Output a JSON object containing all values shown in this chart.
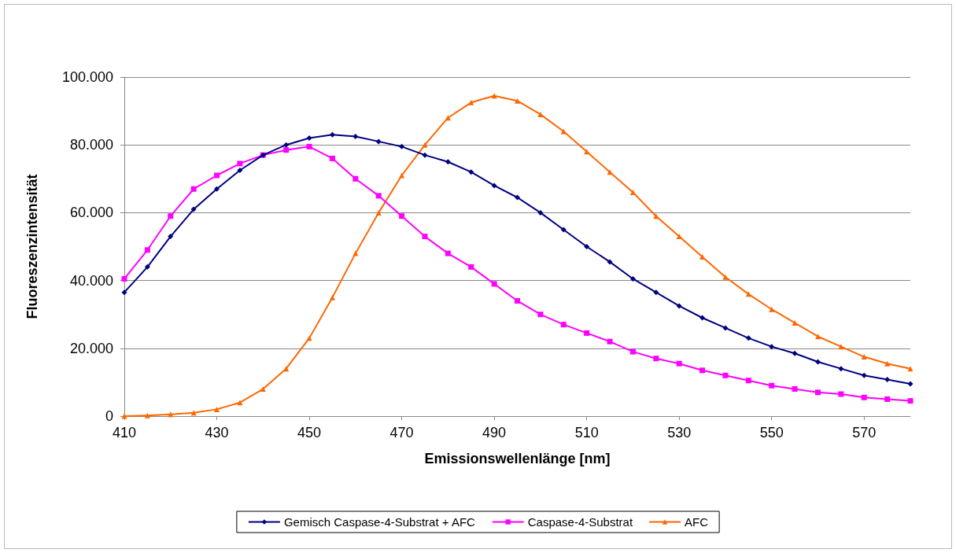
{
  "chart_data": {
    "type": "line",
    "xlabel": "Emissionswellenlänge [nm]",
    "ylabel": "Fluoreszenzintensität",
    "x": [
      410,
      415,
      420,
      425,
      430,
      435,
      440,
      445,
      450,
      455,
      460,
      465,
      470,
      475,
      480,
      485,
      490,
      495,
      500,
      505,
      510,
      515,
      520,
      525,
      530,
      535,
      540,
      545,
      550,
      555,
      560,
      565,
      570,
      575,
      580
    ],
    "xlim": [
      410,
      580
    ],
    "xticks": [
      410,
      430,
      450,
      470,
      490,
      510,
      530,
      550,
      570
    ],
    "ylim": [
      0,
      100000
    ],
    "yticks": [
      {
        "value": 0,
        "label": "0"
      },
      {
        "value": 20000,
        "label": "20.000"
      },
      {
        "value": 40000,
        "label": "40.000"
      },
      {
        "value": 60000,
        "label": "60.000"
      },
      {
        "value": 80000,
        "label": "80.000"
      },
      {
        "value": 100000,
        "label": "100.000"
      }
    ],
    "grid": "y",
    "legend": "bottom",
    "line_style": "solid",
    "series": [
      {
        "name": "Gemisch Caspase-4-Substrat + AFC",
        "color": "#000080",
        "marker": "diamond",
        "values": [
          36500,
          44000,
          53000,
          61000,
          67000,
          72500,
          77000,
          80000,
          82000,
          83000,
          82500,
          81000,
          79500,
          77000,
          75000,
          72000,
          68000,
          64500,
          60000,
          55000,
          50000,
          45500,
          40500,
          36500,
          32500,
          29000,
          26000,
          23000,
          20500,
          18500,
          16000,
          14000,
          12000,
          10800,
          9500
        ]
      },
      {
        "name": "Caspase-4-Substrat",
        "color": "#ff00ff",
        "marker": "square",
        "values": [
          40500,
          49000,
          59000,
          67000,
          71000,
          74500,
          77000,
          78500,
          79500,
          76000,
          70000,
          65000,
          59000,
          53000,
          48000,
          44000,
          39000,
          34000,
          30000,
          27000,
          24500,
          22000,
          19000,
          17000,
          15500,
          13500,
          12000,
          10500,
          9000,
          8000,
          7000,
          6500,
          5500,
          5000,
          4500
        ]
      },
      {
        "name": "AFC",
        "color": "#ff6600",
        "marker": "triangle",
        "values": [
          0,
          200,
          500,
          1000,
          2000,
          4000,
          8000,
          14000,
          23000,
          35000,
          48000,
          60000,
          71000,
          80000,
          88000,
          92500,
          94500,
          93000,
          89000,
          84000,
          78000,
          72000,
          66000,
          59000,
          53000,
          47000,
          41000,
          36000,
          31500,
          27500,
          23500,
          20500,
          17500,
          15500,
          14000
        ]
      }
    ]
  }
}
